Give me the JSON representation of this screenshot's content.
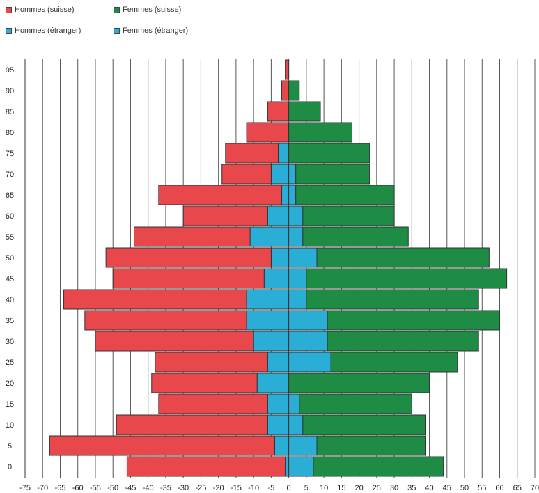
{
  "chart_data": {
    "type": "bar",
    "orientation": "horizontal-pyramid",
    "title": "",
    "xlabel": "",
    "ylabel": "",
    "xlim": [
      -75,
      70
    ],
    "x_ticks": [
      -75,
      -70,
      -65,
      -60,
      -55,
      -50,
      -45,
      -40,
      -35,
      -30,
      -25,
      -20,
      -15,
      -10,
      -5,
      0,
      5,
      10,
      15,
      20,
      25,
      30,
      35,
      40,
      45,
      50,
      55,
      60,
      65,
      70
    ],
    "categories": [
      "0",
      "5",
      "10",
      "15",
      "20",
      "25",
      "30",
      "35",
      "40",
      "45",
      "50",
      "55",
      "60",
      "65",
      "70",
      "75",
      "80",
      "85",
      "90",
      "95"
    ],
    "grid": true,
    "legend_position": "top-left",
    "series": [
      {
        "name": "Hommes (suisse)",
        "color": "#E8474B",
        "side": "left",
        "values": [
          -45,
          -64,
          -43,
          -31,
          -30,
          -32,
          -45,
          -46,
          -52,
          -43,
          -47,
          -33,
          -24,
          -35,
          -14,
          -15,
          -12,
          -6,
          -2,
          -1
        ]
      },
      {
        "name": "Femmes (suisse)",
        "color": "#1E8C45",
        "side": "right",
        "values": [
          37,
          31,
          35,
          32,
          40,
          36,
          43,
          49,
          49,
          57,
          49,
          30,
          26,
          28,
          21,
          23,
          18,
          9,
          3,
          0
        ]
      },
      {
        "name": "Hommes (étranger)",
        "color": "#2BAED6",
        "side": "left",
        "values": [
          -1,
          -4,
          -6,
          -6,
          -9,
          -6,
          -10,
          -12,
          -12,
          -7,
          -5,
          -11,
          -6,
          -2,
          -5,
          -3,
          0,
          0,
          0,
          0
        ]
      },
      {
        "name": "Femmes (étranger)",
        "color": "#2BAED6",
        "side": "right",
        "values": [
          7,
          8,
          4,
          3,
          0,
          12,
          11,
          11,
          5,
          5,
          8,
          4,
          4,
          2,
          2,
          0,
          0,
          0,
          0,
          0
        ]
      }
    ]
  }
}
